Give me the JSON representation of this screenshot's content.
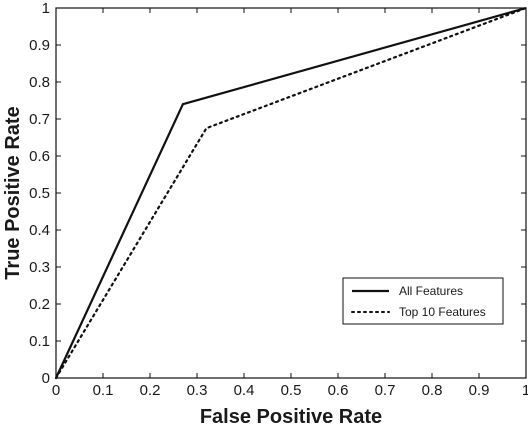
{
  "chart_data": {
    "type": "line",
    "title": "",
    "xlabel": "False Positive Rate",
    "ylabel": "True Positive Rate",
    "xlim": [
      0,
      1
    ],
    "ylim": [
      0,
      1
    ],
    "xticks": [
      "0",
      "0.1",
      "0.2",
      "0.3",
      "0.4",
      "0.5",
      "0.6",
      "0.7",
      "0.8",
      "0.9",
      "1"
    ],
    "yticks": [
      "0",
      "0.1",
      "0.2",
      "0.3",
      "0.4",
      "0.5",
      "0.6",
      "0.7",
      "0.8",
      "0.9",
      "1"
    ],
    "grid": false,
    "legend_position": "bottom-right",
    "series": [
      {
        "name": "All Features",
        "style": "solid",
        "color": "#111111",
        "points": [
          [
            0,
            0
          ],
          [
            0.27,
            0.74
          ],
          [
            1,
            1
          ]
        ]
      },
      {
        "name": "Top 10 Features",
        "style": "dotted",
        "color": "#111111",
        "points": [
          [
            0,
            0
          ],
          [
            0.32,
            0.675
          ],
          [
            1,
            1
          ]
        ]
      }
    ]
  }
}
